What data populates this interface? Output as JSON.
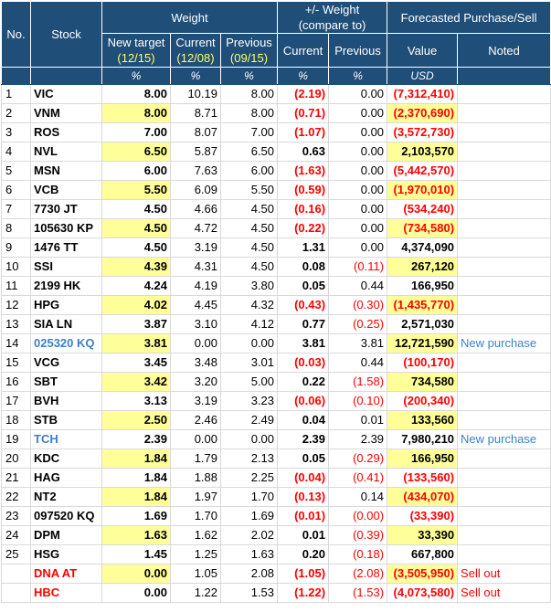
{
  "header": {
    "no": "No.",
    "stock": "Stock",
    "weight": "Weight",
    "change": "+/- Weight\n(compare to)",
    "change_l1": "+/- Weight",
    "change_l2": "(compare to)",
    "forecast": "Forecasted Purchase/Sell",
    "new_target": "New target",
    "new_target_date": "(12/15)",
    "current": "Current",
    "current_date": "(12/08)",
    "previous": "Previous",
    "previous_date": "(09/15)",
    "chg_current": "Current",
    "chg_previous": "Previous",
    "value": "Value",
    "noted": "Noted",
    "unit_pct": "%",
    "unit_usd": "USD"
  },
  "rows": [
    {
      "no": "1",
      "stock": "VIC",
      "target": "8.00",
      "current": "10.19",
      "previous": "8.00",
      "chg_cur": "(2.19)",
      "chg_prev": "0.00",
      "value": "(7,312,410)",
      "note": ""
    },
    {
      "no": "2",
      "stock": "VNM",
      "target": "8.00",
      "current": "8.71",
      "previous": "8.00",
      "chg_cur": "(0.71)",
      "chg_prev": "0.00",
      "value": "(2,370,690)",
      "note": ""
    },
    {
      "no": "3",
      "stock": "ROS",
      "target": "7.00",
      "current": "8.07",
      "previous": "7.00",
      "chg_cur": "(1.07)",
      "chg_prev": "0.00",
      "value": "(3,572,730)",
      "note": ""
    },
    {
      "no": "4",
      "stock": "NVL",
      "target": "6.50",
      "current": "5.87",
      "previous": "6.50",
      "chg_cur": "0.63",
      "chg_prev": "0.00",
      "value": "2,103,570",
      "note": ""
    },
    {
      "no": "5",
      "stock": "MSN",
      "target": "6.00",
      "current": "7.63",
      "previous": "6.00",
      "chg_cur": "(1.63)",
      "chg_prev": "0.00",
      "value": "(5,442,570)",
      "note": ""
    },
    {
      "no": "6",
      "stock": "VCB",
      "target": "5.50",
      "current": "6.09",
      "previous": "5.50",
      "chg_cur": "(0.59)",
      "chg_prev": "0.00",
      "value": "(1,970,010)",
      "note": ""
    },
    {
      "no": "7",
      "stock": "7730 JT",
      "target": "4.50",
      "current": "4.66",
      "previous": "4.50",
      "chg_cur": "(0.16)",
      "chg_prev": "0.00",
      "value": "(534,240)",
      "note": ""
    },
    {
      "no": "8",
      "stock": "105630 KP",
      "target": "4.50",
      "current": "4.72",
      "previous": "4.50",
      "chg_cur": "(0.22)",
      "chg_prev": "0.00",
      "value": "(734,580)",
      "note": ""
    },
    {
      "no": "9",
      "stock": "1476 TT",
      "target": "4.50",
      "current": "3.19",
      "previous": "4.50",
      "chg_cur": "1.31",
      "chg_prev": "0.00",
      "value": "4,374,090",
      "note": ""
    },
    {
      "no": "10",
      "stock": "SSI",
      "target": "4.39",
      "current": "4.31",
      "previous": "4.50",
      "chg_cur": "0.08",
      "chg_prev": "(0.11)",
      "value": "267,120",
      "note": ""
    },
    {
      "no": "11",
      "stock": "2199 HK",
      "target": "4.24",
      "current": "4.19",
      "previous": "3.80",
      "chg_cur": "0.05",
      "chg_prev": "0.44",
      "value": "166,950",
      "note": ""
    },
    {
      "no": "12",
      "stock": "HPG",
      "target": "4.02",
      "current": "4.45",
      "previous": "4.32",
      "chg_cur": "(0.43)",
      "chg_prev": "(0.30)",
      "value": "(1,435,770)",
      "note": ""
    },
    {
      "no": "13",
      "stock": "SIA LN",
      "target": "3.87",
      "current": "3.10",
      "previous": "4.12",
      "chg_cur": "0.77",
      "chg_prev": "(0.25)",
      "value": "2,571,030",
      "note": ""
    },
    {
      "no": "14",
      "stock": "025320 KQ",
      "target": "3.81",
      "current": "0.00",
      "previous": "0.00",
      "chg_cur": "3.81",
      "chg_prev": "3.81",
      "value": "12,721,590",
      "note": "New purchase",
      "stock_color": "blue"
    },
    {
      "no": "15",
      "stock": "VCG",
      "target": "3.45",
      "current": "3.48",
      "previous": "3.01",
      "chg_cur": "(0.03)",
      "chg_prev": "0.44",
      "value": "(100,170)",
      "note": ""
    },
    {
      "no": "16",
      "stock": "SBT",
      "target": "3.42",
      "current": "3.20",
      "previous": "5.00",
      "chg_cur": "0.22",
      "chg_prev": "(1.58)",
      "value": "734,580",
      "note": ""
    },
    {
      "no": "17",
      "stock": "BVH",
      "target": "3.13",
      "current": "3.19",
      "previous": "3.23",
      "chg_cur": "(0.06)",
      "chg_prev": "(0.10)",
      "value": "(200,340)",
      "note": ""
    },
    {
      "no": "18",
      "stock": "STB",
      "target": "2.50",
      "current": "2.46",
      "previous": "2.49",
      "chg_cur": "0.04",
      "chg_prev": "0.01",
      "value": "133,560",
      "note": ""
    },
    {
      "no": "19",
      "stock": "TCH",
      "target": "2.39",
      "current": "0.00",
      "previous": "0.00",
      "chg_cur": "2.39",
      "chg_prev": "2.39",
      "value": "7,980,210",
      "note": "New purchase",
      "stock_color": "blue"
    },
    {
      "no": "20",
      "stock": "KDC",
      "target": "1.84",
      "current": "1.79",
      "previous": "2.13",
      "chg_cur": "0.05",
      "chg_prev": "(0.29)",
      "value": "166,950",
      "note": ""
    },
    {
      "no": "21",
      "stock": "HAG",
      "target": "1.84",
      "current": "1.88",
      "previous": "2.25",
      "chg_cur": "(0.04)",
      "chg_prev": "(0.41)",
      "value": "(133,560)",
      "note": ""
    },
    {
      "no": "22",
      "stock": "NT2",
      "target": "1.84",
      "current": "1.97",
      "previous": "1.70",
      "chg_cur": "(0.13)",
      "chg_prev": "0.14",
      "value": "(434,070)",
      "note": ""
    },
    {
      "no": "23",
      "stock": "097520 KQ",
      "target": "1.69",
      "current": "1.70",
      "previous": "1.69",
      "chg_cur": "(0.01)",
      "chg_prev": "(0.00)",
      "value": "(33,390)",
      "note": ""
    },
    {
      "no": "24",
      "stock": "DPM",
      "target": "1.63",
      "current": "1.62",
      "previous": "2.02",
      "chg_cur": "0.01",
      "chg_prev": "(0.39)",
      "value": "33,390",
      "note": ""
    },
    {
      "no": "25",
      "stock": "HSG",
      "target": "1.45",
      "current": "1.25",
      "previous": "1.63",
      "chg_cur": "0.20",
      "chg_prev": "(0.18)",
      "value": "667,800",
      "note": ""
    },
    {
      "no": "",
      "stock": "DNA AT",
      "target": "0.00",
      "current": "1.05",
      "previous": "2.08",
      "chg_cur": "(1.05)",
      "chg_prev": "(2.08)",
      "value": "(3,505,950)",
      "note": "Sell out",
      "stock_color": "red"
    },
    {
      "no": "",
      "stock": "HBC",
      "target": "0.00",
      "current": "1.22",
      "previous": "1.53",
      "chg_cur": "(1.22)",
      "chg_prev": "(1.53)",
      "value": "(4,073,580)",
      "note": "Sell out",
      "stock_color": "red"
    }
  ],
  "colors": {
    "header_bg": "#1f4e79",
    "highlight_bg": "#ffff99",
    "negative": "#ff0000",
    "new_purchase": "#3f7fc4",
    "sell_out": "#ff0000"
  }
}
